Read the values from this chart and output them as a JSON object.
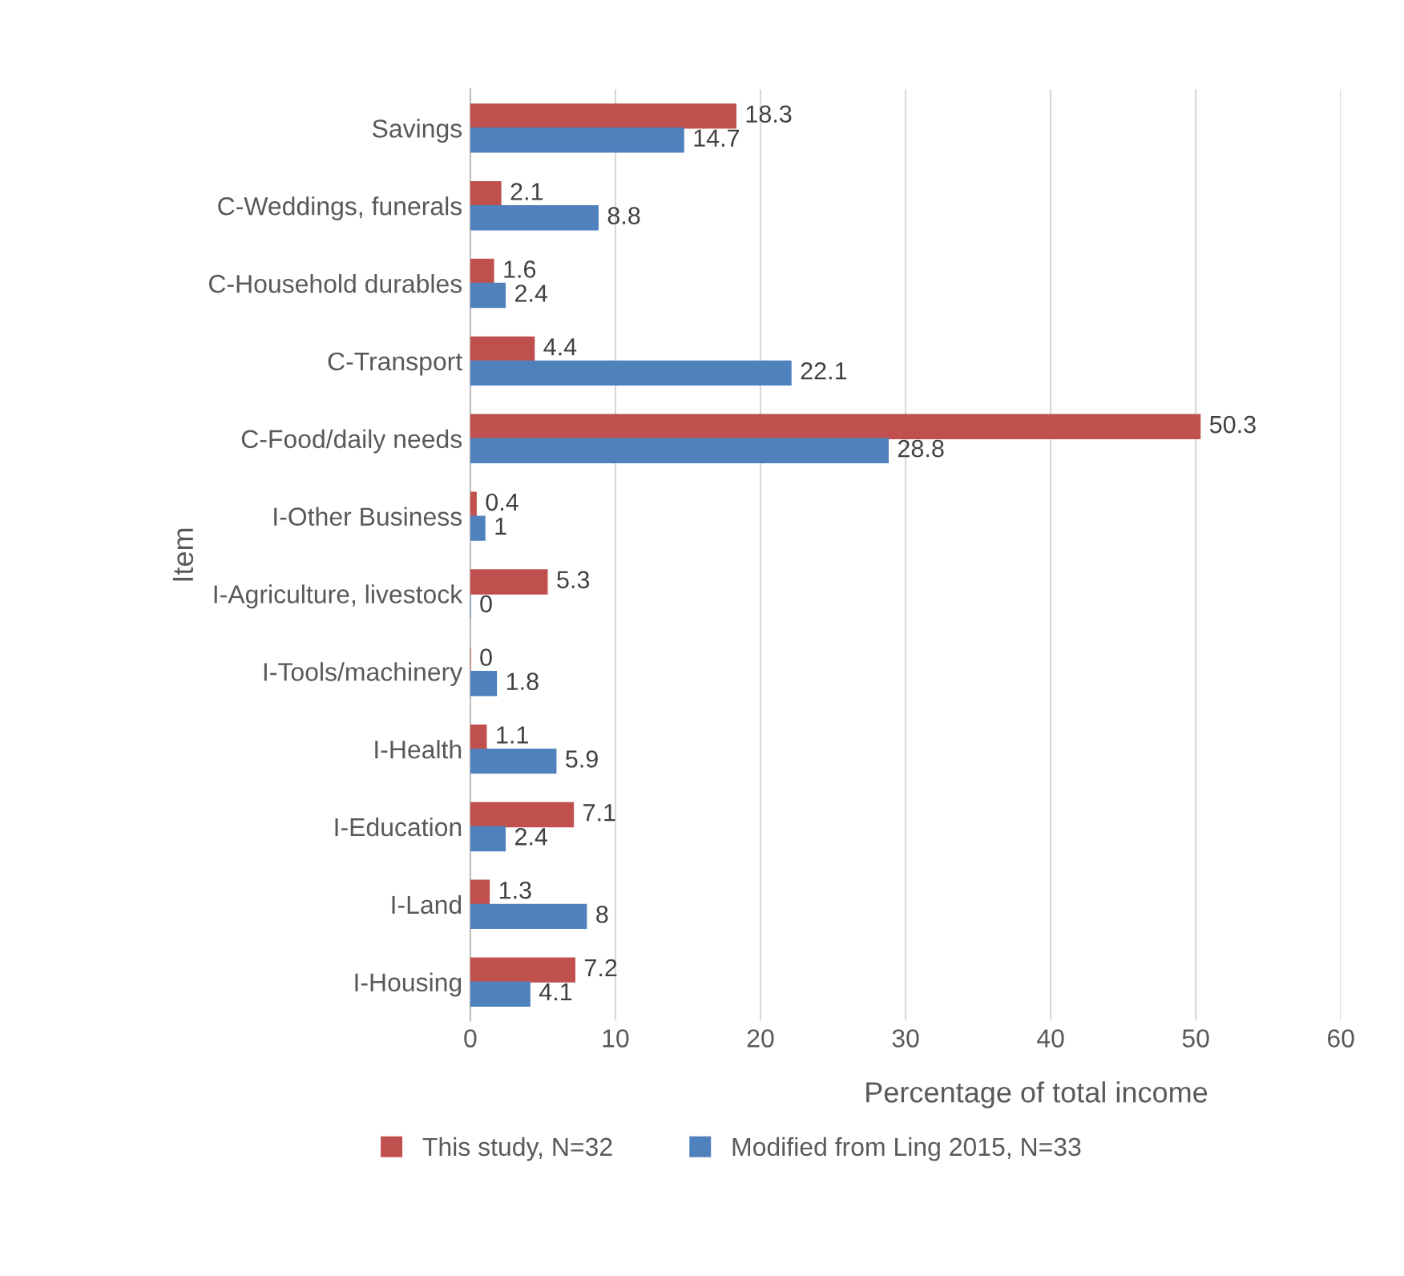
{
  "chart_data": {
    "type": "bar",
    "orientation": "horizontal",
    "xlabel": "Percentage of total income",
    "ylabel": "Item",
    "categories": [
      "Savings",
      "C-Weddings, funerals",
      "C-Household durables",
      "C-Transport",
      "C-Food/daily needs",
      "I-Other Business",
      "I-Agriculture, livestock",
      "I-Tools/machinery",
      "I-Health",
      "I-Education",
      "I-Land",
      "I-Housing"
    ],
    "series": [
      {
        "name": "This study, N=32",
        "color": "#c0504d",
        "values": [
          18.3,
          2.1,
          1.6,
          4.4,
          50.3,
          0.4,
          5.3,
          0,
          1.1,
          7.1,
          1.3,
          7.2
        ]
      },
      {
        "name": "Modified from Ling 2015, N=33",
        "color": "#4f81bd",
        "values": [
          14.7,
          8.8,
          2.4,
          22.1,
          28.8,
          1,
          0,
          1.8,
          5.9,
          2.4,
          8,
          4.1
        ]
      }
    ],
    "xlim": [
      0,
      60
    ],
    "xticks": [
      0,
      10,
      20,
      30,
      40,
      50,
      60
    ],
    "grid": "x",
    "legend": "bottom",
    "data_labels": true
  }
}
